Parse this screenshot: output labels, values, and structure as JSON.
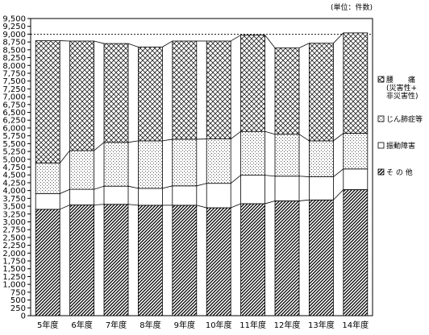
{
  "chart_data": {
    "type": "bar",
    "stacked": true,
    "unit_label": "(単位：件数)",
    "categories": [
      "5年度",
      "6年度",
      "7年度",
      "8年度",
      "9年度",
      "10年度",
      "11年度",
      "12年度",
      "13年度",
      "14年度"
    ],
    "ylim": [
      0,
      9500
    ],
    "ytick_step": 250,
    "ytick_labels": [
      "0",
      "250",
      "500",
      "750",
      "1,000",
      "1,250",
      "1,500",
      "1,750",
      "2,000",
      "2,250",
      "2,500",
      "2,750",
      "3,000",
      "3,250",
      "3,500",
      "3,750",
      "4,000",
      "4,250",
      "4,500",
      "4,750",
      "5,000",
      "5,250",
      "5,500",
      "5,750",
      "6,000",
      "6,250",
      "6,500",
      "6,750",
      "7,000",
      "7,250",
      "7,500",
      "7,750",
      "8,000",
      "8,250",
      "8,500",
      "8,750",
      "9,000",
      "9,250",
      "9,500"
    ],
    "grid": "dashed horizontal line at 9,000 only",
    "legend_position": "right",
    "series": [
      {
        "name": "そ の 他",
        "pattern": "diagonal-hatch",
        "values": [
          3400,
          3540,
          3560,
          3530,
          3530,
          3450,
          3580,
          3670,
          3700,
          4030
        ]
      },
      {
        "name": "振動障害",
        "pattern": "white",
        "values": [
          500,
          500,
          580,
          540,
          620,
          780,
          910,
          790,
          740,
          660
        ]
      },
      {
        "name": "じん肺症等",
        "pattern": "dots",
        "values": [
          980,
          1240,
          1400,
          1520,
          1490,
          1420,
          1400,
          1340,
          1150,
          1140
        ]
      },
      {
        "name": "腰 痛 (災害性+非災害性)",
        "name_lines": [
          "腰　　痛",
          "(災害性+",
          "非災害性)"
        ],
        "pattern": "crosshatch",
        "values": [
          3910,
          3500,
          3160,
          3000,
          3140,
          3130,
          3080,
          2760,
          3120,
          3210
        ]
      }
    ]
  }
}
